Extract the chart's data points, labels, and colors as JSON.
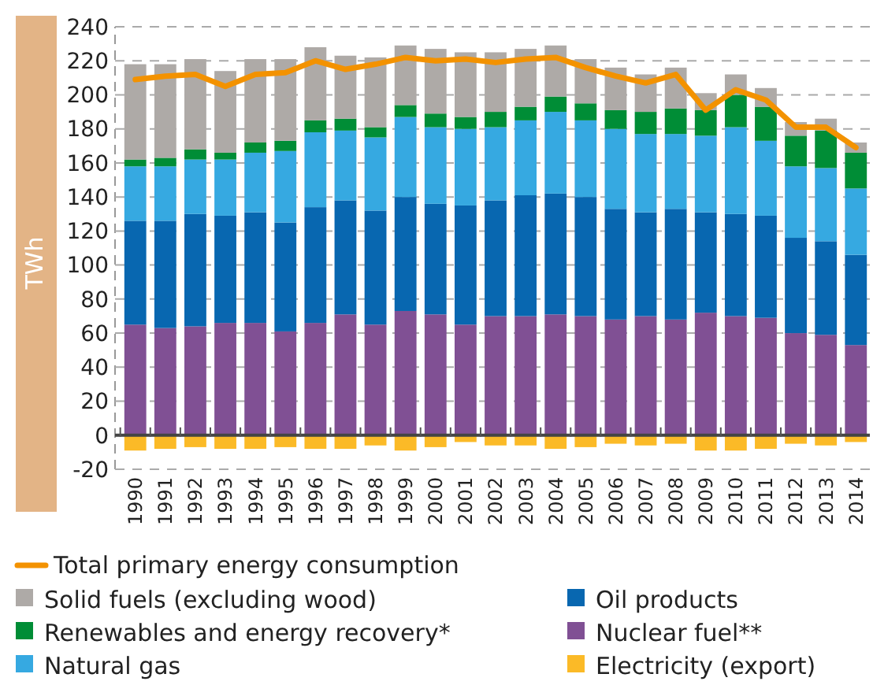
{
  "chart_data": {
    "type": "bar",
    "stacked": true,
    "ylabel": "TWh",
    "categories": [
      "1990",
      "1991",
      "1992",
      "1993",
      "1994",
      "1995",
      "1996",
      "1997",
      "1998",
      "1999",
      "2000",
      "2001",
      "2002",
      "2003",
      "2004",
      "2005",
      "2006",
      "2007",
      "2008",
      "2009",
      "2010",
      "2011",
      "2012",
      "2013",
      "2014"
    ],
    "ylim": [
      -20,
      240
    ],
    "yticks": [
      -20,
      0,
      20,
      40,
      60,
      80,
      100,
      120,
      140,
      160,
      180,
      200,
      220,
      240
    ],
    "grid": "y",
    "legend": "bottom",
    "series": [
      {
        "name": "Nuclear fuel**",
        "color": "#805094",
        "values": [
          65,
          63,
          64,
          66,
          66,
          61,
          66,
          71,
          65,
          73,
          71,
          65,
          70,
          70,
          71,
          70,
          68,
          70,
          68,
          72,
          70,
          69,
          60,
          59,
          53
        ]
      },
      {
        "name": "Oil products",
        "color": "#0867b0",
        "values": [
          61,
          63,
          66,
          63,
          65,
          64,
          68,
          67,
          67,
          67,
          65,
          70,
          68,
          71,
          71,
          70,
          65,
          61,
          65,
          59,
          60,
          60,
          56,
          55,
          53
        ]
      },
      {
        "name": "Natural gas",
        "color": "#36a9e1",
        "values": [
          32,
          32,
          32,
          33,
          35,
          42,
          44,
          41,
          43,
          47,
          45,
          45,
          43,
          44,
          48,
          45,
          47,
          46,
          44,
          45,
          51,
          44,
          42,
          43,
          39
        ]
      },
      {
        "name": "Renewables and energy recovery*",
        "color": "#008d36",
        "values": [
          4,
          5,
          6,
          4,
          6,
          6,
          7,
          7,
          6,
          7,
          8,
          7,
          9,
          8,
          9,
          10,
          11,
          13,
          15,
          15,
          19,
          20,
          18,
          22,
          21
        ]
      },
      {
        "name": "Solid fuels (excluding wood)",
        "color": "#aeaaa7",
        "values": [
          56,
          55,
          53,
          48,
          49,
          48,
          43,
          37,
          41,
          35,
          38,
          38,
          35,
          34,
          30,
          26,
          25,
          22,
          24,
          10,
          12,
          11,
          8,
          7,
          6
        ]
      },
      {
        "name": "Electricity (export)",
        "color": "#fbba27",
        "values": [
          -9,
          -8,
          -7,
          -8,
          -8,
          -7,
          -8,
          -8,
          -6,
          -9,
          -7,
          -4,
          -6,
          -6,
          -8,
          -7,
          -5,
          -6,
          -5,
          -9,
          -9,
          -8,
          -5,
          -6,
          -4
        ]
      },
      {
        "name": "Total primary energy consumption",
        "type": "line",
        "color": "#f39200",
        "values": [
          209,
          211,
          212,
          205,
          212,
          213,
          220,
          215,
          218,
          222,
          220,
          221,
          219,
          221,
          222,
          216,
          211,
          207,
          212,
          191,
          203,
          197,
          181,
          181,
          169
        ]
      }
    ]
  }
}
